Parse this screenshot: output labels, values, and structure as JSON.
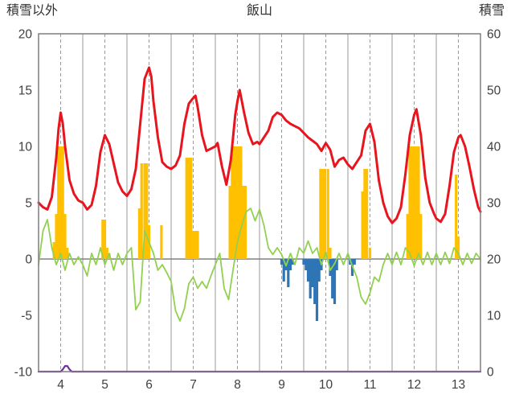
{
  "header": {
    "left_axis_title": "積雪以外",
    "chart_title": "飯山",
    "right_axis_title": "積雪"
  },
  "chart_data": {
    "type": "line",
    "title": "飯山",
    "grid": true,
    "legend": "none",
    "colors": {
      "grid": "#9a9a9a",
      "axis": "#7f7f7f",
      "zero_line": "#808080",
      "text": "#404040"
    },
    "x_axis": {
      "min": 4,
      "max": 14,
      "ticks": [
        4,
        5,
        6,
        7,
        8,
        9,
        10,
        11,
        12,
        13
      ]
    },
    "left_axis": {
      "label": "積雪以外",
      "min": -10,
      "max": 20,
      "ticks": [
        20,
        15,
        10,
        5,
        0,
        -5,
        -10
      ]
    },
    "right_axis": {
      "label": "積雪",
      "min": 0,
      "max": 60,
      "ticks": [
        60,
        50,
        40,
        30,
        20,
        10,
        0
      ]
    },
    "series": [
      {
        "name": "orange-bars",
        "type": "bar",
        "axis": "left",
        "color": "#ffc000",
        "x": [
          4.35,
          4.4,
          4.45,
          4.5,
          4.55,
          4.6,
          4.65,
          5.45,
          5.5,
          5.55,
          5.6,
          6.28,
          6.33,
          6.4,
          6.45,
          6.5,
          6.78,
          7.35,
          7.4,
          7.45,
          7.5,
          7.55,
          7.6,
          8.33,
          8.38,
          8.43,
          8.48,
          8.53,
          8.58,
          8.63,
          8.68,
          10.38,
          10.43,
          10.48,
          10.55,
          10.6,
          11.33,
          11.38,
          11.43,
          11.5,
          12.35,
          12.4,
          12.45,
          12.5,
          12.55,
          12.6,
          12.65,
          13.45,
          13.5
        ],
        "y": [
          1.5,
          4,
          10,
          10,
          10,
          4,
          1,
          3.5,
          3.5,
          1,
          0.5,
          4.5,
          8.5,
          8.5,
          8.5,
          3,
          3,
          9,
          9,
          9,
          2.5,
          2.5,
          2.5,
          6.5,
          10,
          10,
          10,
          10,
          10,
          6.5,
          6.5,
          8,
          8,
          8,
          8,
          1,
          6,
          8,
          8,
          1,
          4,
          10,
          10,
          10,
          10,
          10,
          4,
          7.5,
          2
        ]
      },
      {
        "name": "blue-bars",
        "type": "bar",
        "axis": "left",
        "color": "#2e75b6",
        "x": [
          9.5,
          9.55,
          9.6,
          9.65,
          9.7,
          9.75,
          10.0,
          10.05,
          10.1,
          10.15,
          10.2,
          10.25,
          10.3,
          10.35,
          10.4,
          10.6,
          10.65,
          10.7,
          10.75,
          11.05,
          11.1,
          11.15
        ],
        "y": [
          -0.5,
          -2,
          -1,
          -2.5,
          -1,
          -0.5,
          -0.5,
          -1,
          -2,
          -3.5,
          -2.5,
          -4,
          -5.5,
          -2,
          -1,
          -1.5,
          -3.5,
          -4,
          -1,
          -0.5,
          -1.5,
          -0.5
        ]
      },
      {
        "name": "green-line",
        "type": "line",
        "axis": "left",
        "color": "#92d050",
        "width": 1.8,
        "x_start": 4.0,
        "x_step": 0.1,
        "y": [
          -0.5,
          2.5,
          3.5,
          1.0,
          -0.5,
          0.5,
          -1.0,
          0.5,
          -0.5,
          0.2,
          -0.5,
          -1.5,
          0.5,
          -0.5,
          1.0,
          -0.5,
          0.5,
          -1.0,
          0.5,
          -0.5,
          0.5,
          1.0,
          -4.5,
          -3.8,
          2.5,
          1.5,
          0.5,
          -1.0,
          -0.5,
          -1.2,
          -2.0,
          -4.6,
          -5.5,
          -4.4,
          -2.2,
          -1.6,
          -2.6,
          -2.0,
          -2.6,
          -1.5,
          -0.5,
          0.5,
          -2.6,
          -3.6,
          -1.0,
          1.5,
          3.0,
          4.2,
          4.5,
          3.4,
          4.4,
          3.0,
          1.0,
          0.4,
          1.0,
          0.4,
          -0.6,
          0.5,
          -0.5,
          1.0,
          0.5,
          1.6,
          0.5,
          1.0,
          -0.5,
          0.6,
          -1.0,
          -0.4,
          0.5,
          -0.5,
          0.5,
          -0.6,
          -1.6,
          -3.4,
          -4.0,
          -3.0,
          -1.6,
          -2.0,
          -0.5,
          0.5,
          -0.5,
          0.6,
          -0.5,
          1.0,
          0.5,
          -0.6,
          0.5,
          -0.5,
          0.6,
          -0.5,
          0.5,
          -0.5,
          0.6,
          -0.4,
          1.0,
          0.5,
          -0.5,
          0.5,
          -0.4,
          0.5,
          0.0
        ]
      },
      {
        "name": "red-line",
        "type": "line",
        "axis": "left",
        "color": "#e8141e",
        "width": 3,
        "x": [
          4.0,
          4.1,
          4.2,
          4.3,
          4.4,
          4.45,
          4.5,
          4.55,
          4.6,
          4.7,
          4.8,
          4.9,
          5.0,
          5.1,
          5.2,
          5.3,
          5.4,
          5.5,
          5.6,
          5.7,
          5.8,
          5.9,
          6.0,
          6.1,
          6.2,
          6.3,
          6.4,
          6.5,
          6.55,
          6.6,
          6.7,
          6.8,
          6.9,
          7.0,
          7.1,
          7.2,
          7.3,
          7.4,
          7.5,
          7.55,
          7.6,
          7.7,
          7.8,
          7.9,
          8.0,
          8.05,
          8.15,
          8.25,
          8.35,
          8.45,
          8.5,
          8.55,
          8.65,
          8.75,
          8.85,
          8.95,
          9.0,
          9.1,
          9.2,
          9.3,
          9.4,
          9.5,
          9.6,
          9.7,
          9.8,
          9.9,
          10.0,
          10.1,
          10.2,
          10.3,
          10.4,
          10.5,
          10.6,
          10.7,
          10.8,
          10.9,
          11.0,
          11.1,
          11.2,
          11.3,
          11.4,
          11.5,
          11.6,
          11.7,
          11.8,
          11.9,
          12.0,
          12.1,
          12.2,
          12.3,
          12.4,
          12.5,
          12.55,
          12.65,
          12.75,
          12.85,
          12.95,
          13.0,
          13.1,
          13.2,
          13.3,
          13.4,
          13.5,
          13.55,
          13.65,
          13.75,
          13.85,
          13.95,
          14.0
        ],
        "y": [
          5.0,
          4.6,
          4.4,
          5.5,
          9.0,
          11.5,
          13.0,
          12.0,
          10.0,
          7.0,
          5.8,
          5.2,
          5.0,
          4.4,
          4.8,
          6.5,
          9.5,
          11.0,
          10.2,
          8.5,
          6.8,
          6.0,
          5.6,
          6.2,
          8.0,
          12.0,
          16.0,
          17.0,
          16.2,
          14.0,
          10.8,
          8.6,
          8.2,
          8.0,
          8.3,
          9.2,
          12.0,
          13.8,
          14.3,
          14.5,
          13.5,
          11.0,
          9.6,
          9.8,
          10.0,
          10.3,
          8.2,
          6.6,
          8.8,
          12.8,
          14.0,
          15.0,
          13.0,
          11.2,
          10.2,
          10.4,
          10.2,
          10.8,
          11.4,
          12.6,
          13.0,
          12.8,
          12.3,
          12.0,
          11.8,
          11.6,
          11.2,
          10.8,
          10.5,
          10.2,
          9.6,
          10.3,
          9.7,
          8.2,
          8.8,
          9.0,
          8.4,
          8.0,
          8.6,
          9.2,
          11.4,
          12.0,
          10.4,
          7.0,
          5.0,
          3.8,
          3.2,
          3.6,
          4.6,
          7.5,
          11.0,
          12.8,
          13.3,
          11.0,
          7.2,
          5.0,
          4.0,
          3.6,
          3.3,
          4.0,
          6.5,
          9.5,
          10.8,
          11.0,
          10.0,
          8.2,
          6.2,
          4.6,
          4.2
        ]
      },
      {
        "name": "purple-line",
        "type": "line",
        "axis": "right",
        "color": "#7030a0",
        "width": 2.2,
        "x": [
          4.0,
          4.5,
          4.55,
          4.6,
          4.65,
          4.7,
          4.75,
          14.0
        ],
        "y": [
          0,
          0,
          0.4,
          1.0,
          1.0,
          0.4,
          0,
          0
        ]
      }
    ]
  }
}
